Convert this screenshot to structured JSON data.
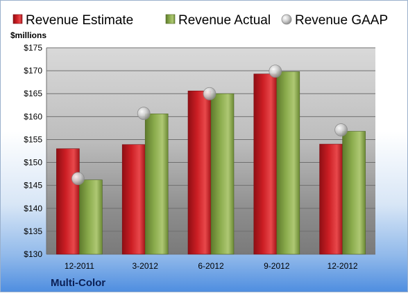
{
  "chart_data": {
    "type": "bar",
    "title": "",
    "ylabel": "$millions",
    "xlabel": "",
    "categories": [
      "12-2011",
      "3-2012",
      "6-2012",
      "9-2012",
      "12-2012"
    ],
    "series": [
      {
        "name": "Revenue Estimate",
        "type": "bar",
        "values": [
          153.0,
          153.9,
          165.6,
          169.3,
          154.0
        ]
      },
      {
        "name": "Revenue Actual",
        "type": "bar",
        "values": [
          146.2,
          160.6,
          165.0,
          169.8,
          156.8
        ]
      },
      {
        "name": "Revenue GAAP",
        "type": "scatter",
        "values": [
          146.5,
          160.7,
          165.0,
          169.9,
          157.1
        ]
      }
    ],
    "ylim": [
      130,
      175
    ],
    "yticks": [
      "$130",
      "$135",
      "$140",
      "$145",
      "$150",
      "$155",
      "$160",
      "$165",
      "$170",
      "$175"
    ],
    "grid": true,
    "legend": "top",
    "colors": {
      "estimate": "#cc1e24",
      "actual": "#8aab4c",
      "gaap": "#b8b8b8"
    }
  },
  "footer": {
    "company": "Multi-Color"
  }
}
